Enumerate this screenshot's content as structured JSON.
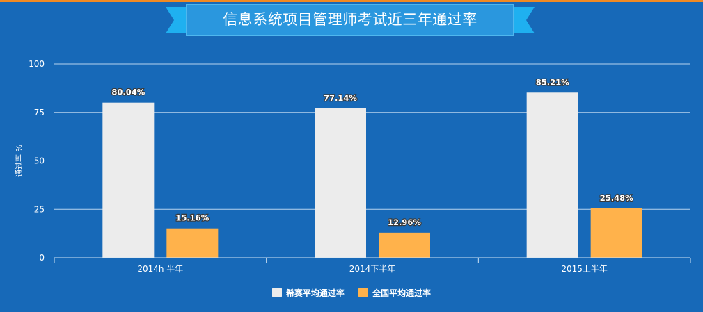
{
  "title": "信息系统项目管理师考试近三年通过率",
  "colors": {
    "background": "#1769b8",
    "top_stripe": "#f08a24",
    "ribbon_main": "#2a97de",
    "ribbon_tail": "#1fb0f0",
    "series_1": "#ececec",
    "series_2": "#ffb24b"
  },
  "legend": [
    {
      "label": "希赛平均通过率"
    },
    {
      "label": "全国平均通过率"
    }
  ],
  "chart_data": {
    "type": "bar",
    "title": "信息系统项目管理师考试近三年通过率",
    "ylabel": "通过率 %",
    "xlabel": "",
    "ylim": [
      0,
      100
    ],
    "yticks": [
      0,
      25,
      50,
      75,
      100
    ],
    "grid": true,
    "legend_position": "bottom",
    "categories": [
      "2014h 半年",
      "2014下半年",
      "2015上半年"
    ],
    "series": [
      {
        "name": "希赛平均通过率",
        "color": "#ececec",
        "values": [
          80.04,
          77.14,
          85.21
        ],
        "labels": [
          "80.04%",
          "77.14%",
          "85.21%"
        ]
      },
      {
        "name": "全国平均通过率",
        "color": "#ffb24b",
        "values": [
          15.16,
          12.96,
          25.48
        ],
        "labels": [
          "15.16%",
          "12.96%",
          "25.48%"
        ]
      }
    ]
  }
}
